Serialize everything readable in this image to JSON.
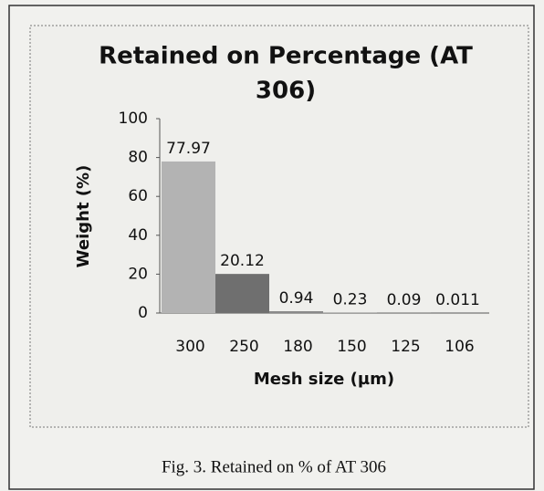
{
  "chart_data": {
    "type": "bar",
    "title": "Retained on Percentage (AT 306)",
    "categories": [
      "300",
      "250",
      "180",
      "150",
      "125",
      "106"
    ],
    "values": [
      77.97,
      20.12,
      0.94,
      0.23,
      0.09,
      0.011
    ],
    "colors": [
      "#b3b3b3",
      "#6f6f6f",
      "#8a8a8a",
      "#8a8a8a",
      "#8a8a8a",
      "#8a8a8a"
    ],
    "xlabel": "Mesh size (µm)",
    "ylabel": "Weight (%)",
    "ylim": [
      0,
      100
    ],
    "yticks": [
      0,
      20,
      40,
      60,
      80,
      100
    ],
    "grid": false
  },
  "caption": "Fig. 3. Retained on % of AT 306"
}
